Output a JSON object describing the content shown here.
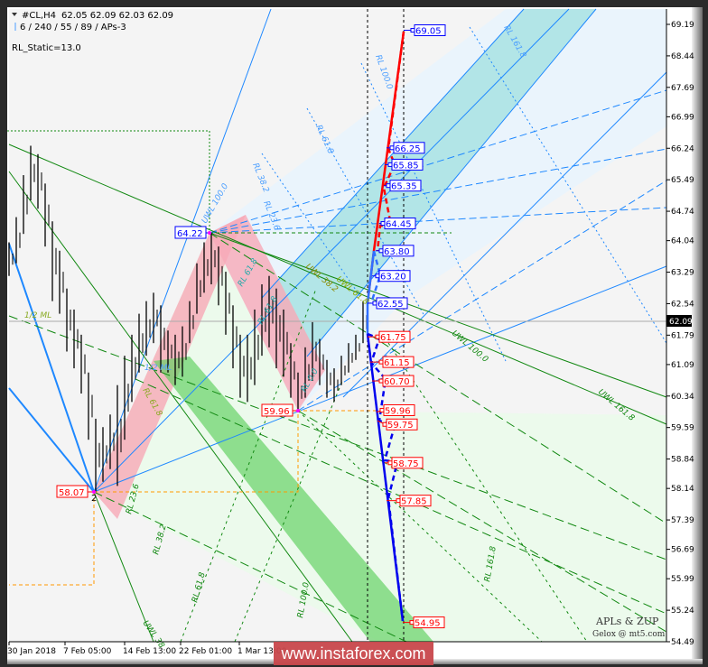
{
  "header": {
    "symbol": "#CL,H4",
    "ohlc": "62.05 62.09 62.03 62.09",
    "params": "6 / 240 / 55 / 89 / APs-3",
    "rl_static": "RL_Static=13.0"
  },
  "chart_data": {
    "type": "candlestick",
    "ylim": [
      54.49,
      69.19
    ],
    "y_ticks": [
      "69.19",
      "68.44",
      "67.69",
      "66.99",
      "66.24",
      "65.49",
      "64.74",
      "64.04",
      "63.29",
      "62.54",
      "61.79",
      "61.09",
      "60.34",
      "59.59",
      "58.84",
      "58.14",
      "57.39",
      "56.69",
      "55.99",
      "55.24",
      "54.49"
    ],
    "x_ticks": [
      "30 Jan 2018",
      "7 Feb 05:00",
      "14 Feb 13:00",
      "22 Feb 01:00",
      "1 Mar 13:00"
    ],
    "current_price": "62.09",
    "bars_high_low": [
      [
        64.0,
        63.2
      ],
      [
        64.6,
        63.5
      ],
      [
        65.6,
        64.2
      ],
      [
        66.3,
        65.0
      ],
      [
        66.1,
        64.8
      ],
      [
        65.4,
        63.9
      ],
      [
        64.5,
        62.6
      ],
      [
        63.8,
        62.3
      ],
      [
        62.9,
        61.4
      ],
      [
        62.4,
        61.0
      ],
      [
        61.8,
        60.4
      ],
      [
        60.9,
        59.3
      ],
      [
        59.8,
        58.07
      ],
      [
        59.6,
        58.3
      ],
      [
        59.9,
        58.6
      ],
      [
        60.6,
        58.2
      ],
      [
        61.3,
        59.3
      ],
      [
        61.8,
        60.2
      ],
      [
        62.3,
        60.9
      ],
      [
        62.6,
        61.3
      ],
      [
        62.8,
        61.6
      ],
      [
        62.5,
        60.9
      ],
      [
        61.9,
        60.9
      ],
      [
        61.8,
        60.6
      ],
      [
        62.0,
        60.8
      ],
      [
        62.6,
        61.6
      ],
      [
        63.5,
        62.3
      ],
      [
        64.0,
        62.8
      ],
      [
        64.22,
        63.0
      ],
      [
        63.9,
        62.5
      ],
      [
        63.3,
        61.8
      ],
      [
        62.5,
        61.0
      ],
      [
        61.8,
        60.3
      ],
      [
        61.8,
        60.2
      ],
      [
        62.4,
        60.6
      ],
      [
        63.0,
        61.3
      ],
      [
        63.2,
        61.5
      ],
      [
        62.9,
        61.0
      ],
      [
        62.4,
        60.8
      ],
      [
        61.6,
        60.3
      ],
      [
        60.9,
        59.96
      ],
      [
        61.5,
        60.3
      ],
      [
        62.1,
        60.7
      ],
      [
        61.7,
        60.6
      ],
      [
        61.2,
        60.3
      ],
      [
        61.0,
        60.2
      ],
      [
        61.3,
        60.6
      ],
      [
        61.6,
        60.9
      ],
      [
        61.8,
        61.2
      ],
      [
        62.6,
        61.6
      ]
    ],
    "pivot_labels": [
      {
        "text": "64.22",
        "color": "#0000ff"
      },
      {
        "text": "58.07",
        "color": "#ff0000"
      },
      {
        "text": "59.96",
        "color": "#ff0000"
      }
    ],
    "pivot_number": "2",
    "target_levels_up": [
      "69.05",
      "66.25",
      "65.85",
      "65.35",
      "64.45",
      "63.80",
      "63.20",
      "62.55"
    ],
    "target_levels_down": [
      "61.75",
      "61.15",
      "60.70",
      "59.96",
      "59.75",
      "58.75",
      "57.85",
      "54.95"
    ],
    "up_color": "#0000ff",
    "down_color": "#ff0000",
    "line_labels": [
      "RL 100.0",
      "RL 61.8",
      "RL 38.2",
      "RL 23.6",
      "UWL 100.0",
      "RL 61.8",
      "UWL 38.2",
      "UWL 61.8",
      "UWL 100.0",
      "UWL 161.8",
      "RL 23.6",
      "RL 38.2",
      "RL 61.8",
      "UWL 38",
      "RL 100.0",
      "RL 161.8",
      "RL 161.8",
      "1/2 ML",
      "1/2 ML",
      "RL 61.8",
      "RL 61.8",
      "RL 0.0"
    ]
  },
  "credits": {
    "title": "APLs & ZUP",
    "author": "Gelox @ mt5.com"
  },
  "watermark": "www.instaforex.com"
}
